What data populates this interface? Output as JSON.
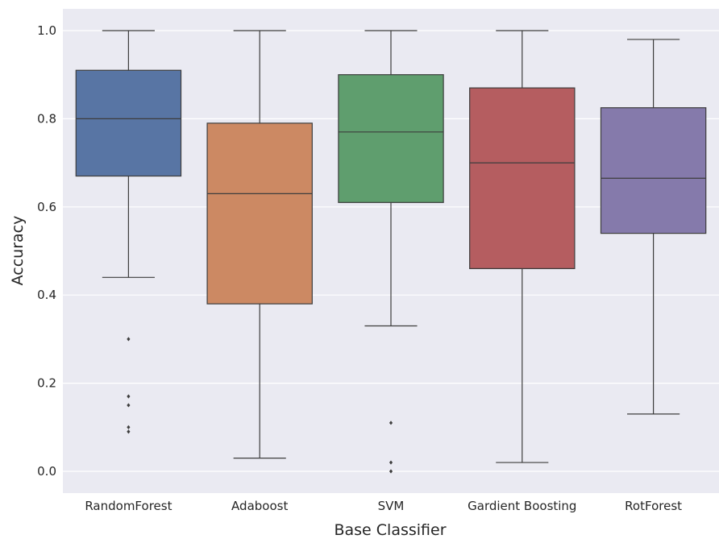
{
  "chart_data": {
    "type": "box",
    "title": "",
    "xlabel": "Base Classifier",
    "ylabel": "Accuracy",
    "ylim": [
      -0.05,
      1.05
    ],
    "yticks": [
      0.0,
      0.2,
      0.4,
      0.6,
      0.8,
      1.0
    ],
    "ytick_labels": [
      "0.0",
      "0.2",
      "0.4",
      "0.6",
      "0.8",
      "1.0"
    ],
    "grid": true,
    "background_color": "#EAEAF2",
    "categories": [
      "RandomForest",
      "Adaboost",
      "SVM",
      "Gardient Boosting",
      "RotForest"
    ],
    "boxes": [
      {
        "category": "RandomForest",
        "whisker_low": 0.44,
        "q1": 0.67,
        "median": 0.8,
        "q3": 0.91,
        "whisker_high": 1.0,
        "outliers": [
          0.3,
          0.17,
          0.15,
          0.1,
          0.09
        ],
        "color": "#5875A4"
      },
      {
        "category": "Adaboost",
        "whisker_low": 0.03,
        "q1": 0.38,
        "median": 0.63,
        "q3": 0.79,
        "whisker_high": 1.0,
        "outliers": [],
        "color": "#CC8963"
      },
      {
        "category": "SVM",
        "whisker_low": 0.33,
        "q1": 0.61,
        "median": 0.77,
        "q3": 0.9,
        "whisker_high": 1.0,
        "outliers": [
          0.11,
          0.02,
          0.0
        ],
        "color": "#5F9E6E"
      },
      {
        "category": "Gardient Boosting",
        "whisker_low": 0.02,
        "q1": 0.46,
        "median": 0.7,
        "q3": 0.87,
        "whisker_high": 1.0,
        "outliers": [],
        "color": "#B55D60"
      },
      {
        "category": "RotForest",
        "whisker_low": 0.13,
        "q1": 0.54,
        "median": 0.665,
        "q3": 0.825,
        "whisker_high": 0.98,
        "outliers": [],
        "color": "#857AAB"
      }
    ]
  }
}
